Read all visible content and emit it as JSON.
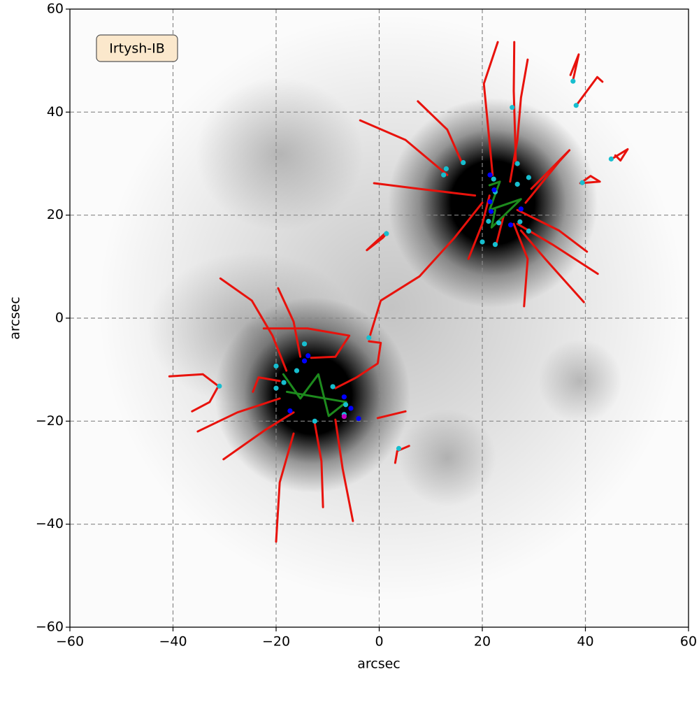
{
  "chart_data": {
    "type": "line",
    "annotation": "Irtysh-IB",
    "xlabel": "arcsec",
    "ylabel": "arcsec",
    "xlim": [
      -60,
      60
    ],
    "ylim": [
      -60,
      60
    ],
    "xticks": [
      {
        "value": -60,
        "label": "−60"
      },
      {
        "value": -40,
        "label": "−40"
      },
      {
        "value": -20,
        "label": "−20"
      },
      0,
      20,
      40,
      60
    ],
    "yticks": [
      {
        "value": -60,
        "label": "−60"
      },
      {
        "value": -40,
        "label": "−40"
      },
      {
        "value": -20,
        "label": "−20"
      },
      0,
      20,
      40,
      60
    ],
    "grid": true,
    "series": [
      {
        "type": "line",
        "color": "#e8120c",
        "x": [
          23,
          20.3,
          21.1,
          22
        ],
        "y": [
          53.6,
          45.5,
          37.3,
          27.8
        ]
      },
      {
        "type": "line",
        "color": "#e8120c",
        "x": [
          26.2,
          26.1,
          26.5
        ],
        "y": [
          53.6,
          44.1,
          30.5
        ]
      },
      {
        "type": "line",
        "color": "#e8120c",
        "x": [
          28.8,
          27.5,
          26.8,
          25.4
        ],
        "y": [
          50.2,
          42.8,
          34.6,
          26.5
        ]
      },
      {
        "type": "line",
        "color": "#e8120c",
        "x": [
          7.5,
          13.2,
          15.9
        ],
        "y": [
          42.1,
          36.6,
          30.5
        ]
      },
      {
        "type": "line",
        "color": "#e8120c",
        "x": [
          -3.7,
          5.1,
          13.2
        ],
        "y": [
          38.4,
          34.6,
          27.8
        ]
      },
      {
        "type": "line",
        "color": "#e8120c",
        "x": [
          -1,
          7.8,
          18.6
        ],
        "y": [
          26.2,
          25.1,
          23.8
        ]
      },
      {
        "type": "line",
        "color": "#e8120c",
        "x": [
          -2,
          0.3,
          7.8,
          14.6,
          20
        ],
        "y": [
          -4.1,
          3.4,
          8.1,
          15.6,
          22.4
        ]
      },
      {
        "type": "line",
        "color": "#e8120c",
        "x": [
          28.4,
          35,
          36.9,
          29.5
        ],
        "y": [
          22.4,
          30.5,
          32.6,
          25.1
        ]
      },
      {
        "type": "line",
        "color": "#e8120c",
        "x": [
          40.3,
          34.9,
          26.8
        ],
        "y": [
          12.9,
          17,
          21
        ]
      },
      {
        "type": "line",
        "color": "#e8120c",
        "x": [
          42.4,
          33.6,
          26.8
        ],
        "y": [
          8.6,
          14.3,
          18.3
        ]
      },
      {
        "type": "line",
        "color": "#e8120c",
        "x": [
          39.7,
          32.2,
          27.5
        ],
        "y": [
          3.1,
          11.5,
          17
        ]
      },
      {
        "type": "line",
        "color": "#e8120c",
        "x": [
          28.1,
          28.8,
          26.1
        ],
        "y": [
          2.3,
          11.5,
          18.3
        ]
      },
      {
        "type": "line",
        "color": "#e8120c",
        "x": [
          17.3,
          20,
          21.4
        ],
        "y": [
          11.5,
          18.3,
          23.8
        ]
      },
      {
        "type": "line",
        "color": "#e8120c",
        "x": [
          22.7,
          24.1
        ],
        "y": [
          14.3,
          19.7
        ]
      },
      {
        "type": "line",
        "color": "#e8120c",
        "x": [
          39,
          42.8,
          41,
          39.2
        ],
        "y": [
          26.2,
          26.5,
          27.6,
          26.3
        ]
      },
      {
        "type": "line",
        "color": "#e8120c",
        "x": [
          45.1,
          48.2,
          46.8,
          45.8
        ],
        "y": [
          30.9,
          32.8,
          30.6,
          31.6
        ]
      },
      {
        "type": "line",
        "color": "#e8120c",
        "x": [
          37.6,
          38.7,
          37.1
        ],
        "y": [
          46.2,
          51.2,
          47.2
        ]
      },
      {
        "type": "line",
        "color": "#e8120c",
        "x": [
          38.3,
          42.3,
          43.3
        ],
        "y": [
          41.4,
          46.8,
          45.9
        ]
      },
      {
        "type": "line",
        "color": "#e8120c",
        "x": [
          1.4,
          -2.4,
          0.7,
          1.4
        ],
        "y": [
          16.7,
          13.2,
          15.6,
          16.4
        ]
      },
      {
        "type": "line",
        "color": "#e8120c",
        "x": [
          -30.8,
          -24.7,
          -20.7,
          -18
        ],
        "y": [
          7.7,
          3.4,
          -3.4,
          -10.2
        ]
      },
      {
        "type": "line",
        "color": "#e8120c",
        "x": [
          -19.6,
          -16.6,
          -15.3
        ],
        "y": [
          5.8,
          -0.7,
          -7.5
        ]
      },
      {
        "type": "line",
        "color": "#e8120c",
        "x": [
          -40.7,
          -34.2,
          -31.2,
          -32.9,
          -36.3
        ],
        "y": [
          -11.3,
          -10.9,
          -13.2,
          -16.3,
          -18.1
        ]
      },
      {
        "type": "line",
        "color": "#e8120c",
        "x": [
          -35.2,
          -27.5,
          -19.3
        ],
        "y": [
          -22,
          -18.3,
          -15.6
        ]
      },
      {
        "type": "line",
        "color": "#e8120c",
        "x": [
          -30.2,
          -22.1,
          -16.6
        ],
        "y": [
          -27.4,
          -21.7,
          -18.3
        ]
      },
      {
        "type": "line",
        "color": "#e8120c",
        "x": [
          -20,
          -19.3,
          -16.6
        ],
        "y": [
          -43.4,
          -31.9,
          -22.4
        ]
      },
      {
        "type": "line",
        "color": "#e8120c",
        "x": [
          -10.9,
          -11.2,
          -12.5
        ],
        "y": [
          -36.7,
          -27.8,
          -20.4
        ]
      },
      {
        "type": "line",
        "color": "#e8120c",
        "x": [
          -5.1,
          -7.1,
          -8.5
        ],
        "y": [
          -39.4,
          -29.2,
          -19.7
        ]
      },
      {
        "type": "line",
        "color": "#e8120c",
        "x": [
          -0.3,
          5.1
        ],
        "y": [
          -19.4,
          -18.1
        ]
      },
      {
        "type": "line",
        "color": "#e8120c",
        "x": [
          -2,
          0.3,
          -0.3,
          -4.4,
          -8.5
        ],
        "y": [
          -4.5,
          -4.8,
          -8.8,
          -11.5,
          -13.6
        ]
      },
      {
        "type": "line",
        "color": "#e8120c",
        "x": [
          3.1,
          3.5,
          5.8
        ],
        "y": [
          -28.1,
          -25.8,
          -24.8
        ]
      },
      {
        "type": "line",
        "color": "#e8120c",
        "x": [
          -22.4,
          -13.9,
          -5.8,
          -8.5,
          -13.2
        ],
        "y": [
          -2,
          -2,
          -3.4,
          -7.5,
          -7.7
        ]
      },
      {
        "type": "line",
        "color": "#e8120c",
        "x": [
          -24.5,
          -23.4,
          -19.3
        ],
        "y": [
          -14.3,
          -11.5,
          -12.2
        ]
      },
      {
        "type": "line",
        "color": "#1d8a1d",
        "x": [
          21.4,
          23.4,
          21.4,
          27.5,
          21.8,
          22.5
        ],
        "y": [
          25.8,
          26.5,
          21,
          23.1,
          17.6,
          21
        ]
      },
      {
        "type": "line",
        "color": "#1d8a1d",
        "x": [
          -18.6,
          -15.3,
          -11.8,
          -9.8,
          -6.4,
          -17.9
        ],
        "y": [
          -10.9,
          -15.6,
          -10.9,
          -19,
          -16.3,
          -14.3
        ]
      },
      {
        "type": "scatter",
        "color": "#17becf",
        "x": [
          -31,
          -20,
          -20,
          -18.5,
          -16,
          -14.5,
          -12.5,
          -9,
          -6.5,
          -6.8,
          -2,
          1.4,
          3.8,
          12.5,
          13,
          16.3,
          20,
          22.2,
          22.5,
          22.5,
          23.2,
          25.8,
          26.8,
          26.8,
          27.3,
          29,
          29,
          37.6,
          38.2,
          39.4,
          45,
          21.2
        ],
        "y": [
          -13.2,
          -9.3,
          -13.6,
          -12.5,
          -10.2,
          -5,
          -20,
          -13.3,
          -16.8,
          -18.7,
          -3.8,
          16.4,
          -25.3,
          27.8,
          29,
          30.2,
          14.8,
          27,
          14.3,
          24.5,
          18.5,
          40.9,
          30,
          26,
          18.7,
          27.3,
          16.9,
          46,
          41.3,
          26.3,
          30.9,
          18.8
        ]
      },
      {
        "type": "scatter",
        "color": "#0000ff",
        "x": [
          -17.3,
          -13.8,
          -14.5,
          -6.8,
          -5.5,
          -4,
          21.5,
          21.5,
          21.7,
          22.3,
          25.5,
          27.5
        ],
        "y": [
          -18,
          -7.3,
          -8.3,
          -15.3,
          -17.5,
          -19.5,
          27.8,
          22.6,
          20.7,
          24.9,
          18.1,
          21.2
        ]
      },
      {
        "type": "scatter",
        "color": "#bf00bf",
        "x": [
          -6.8
        ],
        "y": [
          -19.1
        ]
      }
    ]
  }
}
